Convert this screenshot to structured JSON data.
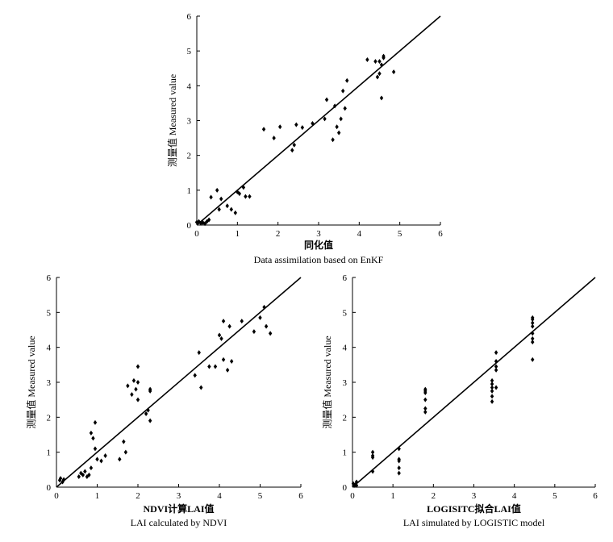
{
  "chart_data": [
    {
      "type": "scatter",
      "xlabel": "同化值",
      "subtitle": "Data assimilation based on EnKF",
      "ylabel": "测量值 Measured value",
      "xlim": [
        0,
        6
      ],
      "ylim": [
        0,
        6
      ],
      "xticks": [
        "0",
        "1",
        "2",
        "3",
        "4",
        "5",
        "6"
      ],
      "yticks": [
        "0",
        "1",
        "2",
        "3",
        "4",
        "5",
        "6"
      ],
      "grid": false,
      "reference_line": [
        [
          0,
          0
        ],
        [
          6,
          6
        ]
      ],
      "points": [
        [
          0.0,
          0.08
        ],
        [
          0.05,
          0.1
        ],
        [
          0.1,
          0.05
        ],
        [
          0.15,
          0.07
        ],
        [
          0.2,
          0.04
        ],
        [
          0.25,
          0.1
        ],
        [
          0.3,
          0.15
        ],
        [
          0.35,
          0.8
        ],
        [
          0.5,
          1.0
        ],
        [
          0.55,
          0.45
        ],
        [
          0.6,
          0.75
        ],
        [
          0.75,
          0.55
        ],
        [
          0.85,
          0.45
        ],
        [
          0.95,
          0.35
        ],
        [
          1.0,
          0.95
        ],
        [
          1.05,
          0.9
        ],
        [
          1.15,
          1.08
        ],
        [
          1.2,
          0.82
        ],
        [
          1.3,
          0.82
        ],
        [
          1.65,
          2.75
        ],
        [
          1.9,
          2.5
        ],
        [
          2.05,
          2.82
        ],
        [
          2.35,
          2.15
        ],
        [
          2.4,
          2.3
        ],
        [
          2.45,
          2.88
        ],
        [
          2.6,
          2.8
        ],
        [
          2.85,
          2.92
        ],
        [
          3.15,
          3.05
        ],
        [
          3.2,
          3.6
        ],
        [
          3.35,
          2.45
        ],
        [
          3.4,
          3.42
        ],
        [
          3.45,
          2.82
        ],
        [
          3.5,
          2.65
        ],
        [
          3.55,
          3.05
        ],
        [
          3.6,
          3.85
        ],
        [
          3.65,
          3.35
        ],
        [
          3.7,
          4.15
        ],
        [
          4.2,
          4.75
        ],
        [
          4.4,
          4.7
        ],
        [
          4.45,
          4.25
        ],
        [
          4.5,
          4.35
        ],
        [
          4.5,
          4.7
        ],
        [
          4.55,
          4.6
        ],
        [
          4.55,
          3.65
        ],
        [
          4.6,
          4.8
        ],
        [
          4.6,
          4.85
        ],
        [
          4.85,
          4.4
        ]
      ]
    },
    {
      "type": "scatter",
      "xlabel": "NDVI计算LAI值",
      "subtitle": "LAI calculated by NDVI",
      "ylabel": "测量值 Measured value",
      "xlim": [
        0,
        6
      ],
      "ylim": [
        0,
        6
      ],
      "xticks": [
        "0",
        "1",
        "2",
        "3",
        "4",
        "5",
        "6"
      ],
      "yticks": [
        "0",
        "1",
        "2",
        "3",
        "4",
        "5",
        "6"
      ],
      "grid": false,
      "reference_line": [
        [
          0,
          0
        ],
        [
          6,
          6
        ]
      ],
      "points": [
        [
          0.08,
          0.2
        ],
        [
          0.1,
          0.25
        ],
        [
          0.15,
          0.15
        ],
        [
          0.18,
          0.22
        ],
        [
          0.55,
          0.3
        ],
        [
          0.6,
          0.4
        ],
        [
          0.65,
          0.35
        ],
        [
          0.7,
          0.45
        ],
        [
          0.75,
          0.3
        ],
        [
          0.8,
          0.35
        ],
        [
          0.85,
          0.55
        ],
        [
          0.85,
          1.55
        ],
        [
          0.9,
          1.4
        ],
        [
          0.95,
          1.85
        ],
        [
          0.95,
          1.1
        ],
        [
          1.0,
          0.8
        ],
        [
          1.1,
          0.75
        ],
        [
          1.2,
          0.9
        ],
        [
          1.55,
          0.8
        ],
        [
          1.65,
          1.3
        ],
        [
          1.7,
          1.0
        ],
        [
          1.75,
          2.9
        ],
        [
          1.85,
          2.65
        ],
        [
          1.9,
          3.05
        ],
        [
          1.95,
          2.8
        ],
        [
          2.0,
          3.0
        ],
        [
          2.0,
          3.45
        ],
        [
          2.0,
          2.5
        ],
        [
          2.2,
          2.1
        ],
        [
          2.25,
          2.2
        ],
        [
          2.3,
          2.8
        ],
        [
          2.3,
          2.75
        ],
        [
          2.3,
          1.9
        ],
        [
          3.4,
          3.2
        ],
        [
          3.5,
          3.85
        ],
        [
          3.55,
          2.85
        ],
        [
          3.75,
          3.45
        ],
        [
          3.9,
          3.45
        ],
        [
          4.0,
          4.35
        ],
        [
          4.05,
          4.25
        ],
        [
          4.1,
          4.75
        ],
        [
          4.1,
          3.65
        ],
        [
          4.2,
          3.35
        ],
        [
          4.25,
          4.6
        ],
        [
          4.3,
          3.6
        ],
        [
          4.55,
          4.75
        ],
        [
          4.85,
          4.45
        ],
        [
          5.0,
          4.85
        ],
        [
          5.1,
          5.15
        ],
        [
          5.15,
          4.6
        ],
        [
          5.25,
          4.4
        ]
      ]
    },
    {
      "type": "scatter",
      "xlabel": "LOGISITC拟合LAI值",
      "subtitle": "LAI simulated by LOGISTIC model",
      "ylabel": "测量值 Measured value",
      "xlim": [
        0,
        6
      ],
      "ylim": [
        0,
        6
      ],
      "xticks": [
        "0",
        "1",
        "2",
        "3",
        "4",
        "5",
        "6"
      ],
      "yticks": [
        "0",
        "1",
        "2",
        "3",
        "4",
        "5",
        "6"
      ],
      "grid": false,
      "reference_line": [
        [
          0,
          0
        ],
        [
          6,
          6
        ]
      ],
      "points": [
        [
          0.02,
          0.1
        ],
        [
          0.05,
          0.05
        ],
        [
          0.08,
          0.08
        ],
        [
          0.1,
          0.15
        ],
        [
          0.1,
          0.05
        ],
        [
          0.5,
          1.0
        ],
        [
          0.5,
          0.9
        ],
        [
          0.5,
          0.85
        ],
        [
          0.5,
          0.45
        ],
        [
          1.15,
          1.1
        ],
        [
          1.15,
          0.8
        ],
        [
          1.15,
          0.75
        ],
        [
          1.15,
          0.55
        ],
        [
          1.15,
          0.4
        ],
        [
          1.8,
          2.8
        ],
        [
          1.8,
          2.75
        ],
        [
          1.8,
          2.7
        ],
        [
          1.8,
          2.5
        ],
        [
          1.8,
          2.25
        ],
        [
          1.8,
          2.15
        ],
        [
          3.45,
          3.05
        ],
        [
          3.45,
          2.95
        ],
        [
          3.45,
          2.85
        ],
        [
          3.45,
          2.75
        ],
        [
          3.45,
          2.6
        ],
        [
          3.45,
          2.45
        ],
        [
          3.55,
          3.85
        ],
        [
          3.55,
          3.6
        ],
        [
          3.55,
          3.45
        ],
        [
          3.55,
          3.35
        ],
        [
          3.55,
          2.85
        ],
        [
          4.45,
          4.85
        ],
        [
          4.45,
          4.8
        ],
        [
          4.45,
          4.7
        ],
        [
          4.45,
          4.6
        ],
        [
          4.45,
          4.4
        ],
        [
          4.45,
          4.25
        ],
        [
          4.45,
          4.15
        ],
        [
          4.45,
          3.65
        ]
      ]
    }
  ]
}
